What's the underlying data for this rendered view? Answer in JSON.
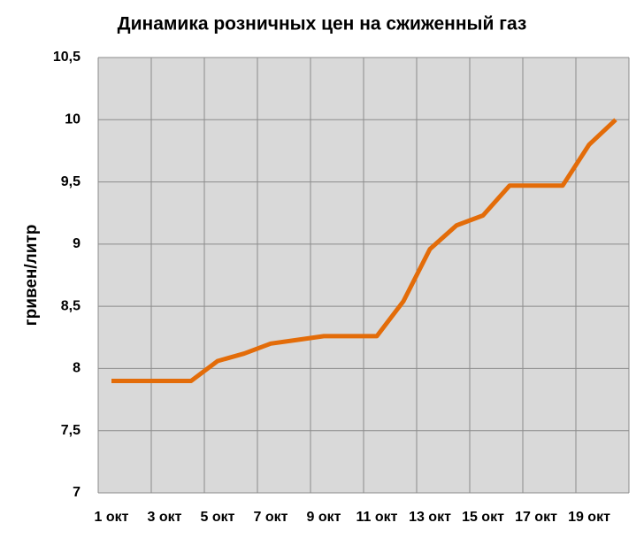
{
  "chart_data": {
    "type": "line",
    "title": "Динамика розничных цен на сжиженный газ",
    "y_label": "гривен/литр",
    "categories": [
      "1 окт",
      null,
      "3 окт",
      null,
      "5 окт",
      null,
      "7 окт",
      null,
      "9 окт",
      null,
      "11 окт",
      null,
      "13 окт",
      null,
      "15 окт",
      null,
      "17 окт",
      null,
      "19 окт",
      null
    ],
    "series": [
      {
        "name": "гривен/литр",
        "color": "#e36c09",
        "values": [
          7.9,
          7.9,
          7.9,
          7.9,
          8.06,
          8.12,
          8.2,
          8.23,
          8.26,
          8.26,
          8.26,
          8.54,
          8.96,
          9.15,
          9.23,
          9.47,
          9.47,
          9.47,
          9.8,
          10.0
        ]
      }
    ],
    "ylim": [
      7,
      10.5
    ],
    "yticks": [
      7,
      {
        "value": 7.5,
        "label": "7,5"
      },
      8,
      {
        "value": 8.5,
        "label": "8,5"
      },
      9,
      {
        "value": 9.5,
        "label": "9,5"
      },
      10,
      {
        "value": 10.5,
        "label": "10,5"
      }
    ],
    "grid": true
  }
}
